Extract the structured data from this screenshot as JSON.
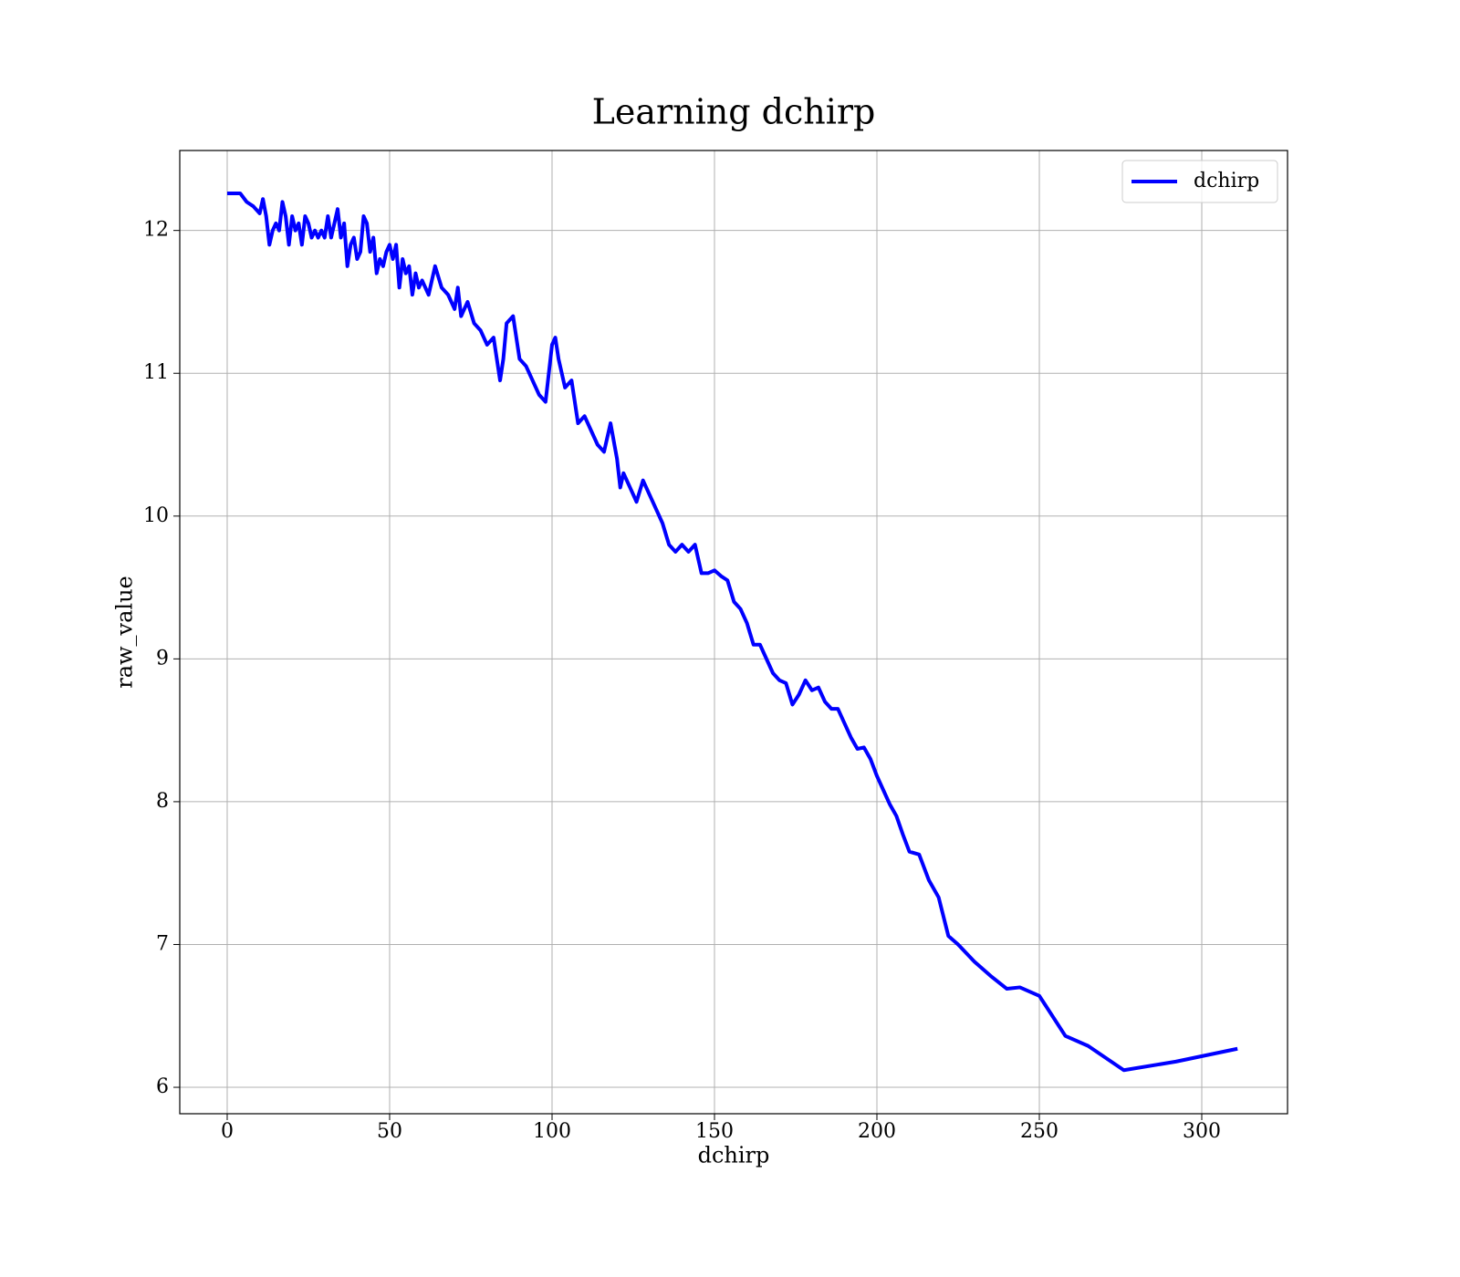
{
  "chart_data": {
    "type": "line",
    "title": "Learning dchirp",
    "xlabel": "dchirp",
    "ylabel": "raw_value",
    "x": [
      0,
      4,
      6,
      8,
      10,
      11,
      12,
      13,
      14,
      15,
      16,
      17,
      18,
      19,
      20,
      21,
      22,
      23,
      24,
      25,
      26,
      27,
      28,
      29,
      30,
      31,
      32,
      33,
      34,
      35,
      36,
      37,
      38,
      39,
      40,
      41,
      42,
      43,
      44,
      45,
      46,
      47,
      48,
      49,
      50,
      51,
      52,
      53,
      54,
      55,
      56,
      57,
      58,
      59,
      60,
      62,
      64,
      66,
      68,
      70,
      71,
      72,
      74,
      76,
      78,
      80,
      82,
      84,
      85,
      86,
      88,
      90,
      92,
      94,
      96,
      98,
      100,
      101,
      102,
      104,
      106,
      108,
      110,
      112,
      114,
      116,
      118,
      120,
      121,
      122,
      124,
      126,
      128,
      130,
      132,
      134,
      136,
      138,
      140,
      142,
      144,
      146,
      148,
      150,
      152,
      154,
      156,
      158,
      160,
      162,
      164,
      166,
      168,
      170,
      172,
      174,
      176,
      178,
      180,
      182,
      184,
      186,
      188,
      190,
      192,
      194,
      196,
      198,
      200,
      202,
      204,
      206,
      208,
      210,
      213,
      216,
      219,
      222,
      225,
      230,
      235,
      240,
      244,
      250,
      258,
      265,
      276,
      292,
      311
    ],
    "series": [
      {
        "name": "dchirp",
        "color": "#0000ff",
        "values": [
          12.26,
          12.26,
          12.2,
          12.17,
          12.12,
          12.22,
          12.1,
          11.9,
          12.0,
          12.05,
          12.0,
          12.2,
          12.1,
          11.9,
          12.1,
          12.0,
          12.05,
          11.9,
          12.1,
          12.05,
          11.95,
          12.0,
          11.95,
          12.0,
          11.95,
          12.1,
          11.95,
          12.05,
          12.15,
          11.95,
          12.05,
          11.75,
          11.9,
          11.95,
          11.8,
          11.85,
          12.1,
          12.05,
          11.85,
          11.95,
          11.7,
          11.8,
          11.75,
          11.85,
          11.9,
          11.8,
          11.9,
          11.6,
          11.8,
          11.7,
          11.75,
          11.55,
          11.7,
          11.6,
          11.65,
          11.55,
          11.75,
          11.6,
          11.55,
          11.45,
          11.6,
          11.4,
          11.5,
          11.35,
          11.3,
          11.2,
          11.25,
          10.95,
          11.1,
          11.35,
          11.4,
          11.1,
          11.05,
          10.95,
          10.85,
          10.8,
          11.2,
          11.25,
          11.1,
          10.9,
          10.95,
          10.65,
          10.7,
          10.6,
          10.5,
          10.45,
          10.65,
          10.4,
          10.2,
          10.3,
          10.2,
          10.1,
          10.25,
          10.15,
          10.05,
          9.95,
          9.8,
          9.75,
          9.8,
          9.75,
          9.8,
          9.6,
          9.6,
          9.62,
          9.58,
          9.55,
          9.4,
          9.35,
          9.25,
          9.1,
          9.1,
          9.0,
          8.9,
          8.85,
          8.83,
          8.68,
          8.75,
          8.85,
          8.78,
          8.8,
          8.7,
          8.65,
          8.65,
          8.55,
          8.45,
          8.37,
          8.38,
          8.3,
          8.18,
          8.08,
          7.98,
          7.9,
          7.77,
          7.65,
          7.63,
          7.45,
          7.33,
          7.06,
          7.0,
          6.88,
          6.78,
          6.69,
          6.7,
          6.64,
          6.36,
          6.29,
          6.12,
          6.18,
          6.27
        ]
      }
    ],
    "xlim": [
      -14.6,
      326.4
    ],
    "xticks": [
      0,
      50,
      100,
      150,
      200,
      250,
      300
    ],
    "ylim": [
      5.815,
      12.56
    ],
    "yticks": [
      6,
      7,
      8,
      9,
      10,
      11,
      12
    ],
    "grid": true,
    "legend": "upper right"
  }
}
